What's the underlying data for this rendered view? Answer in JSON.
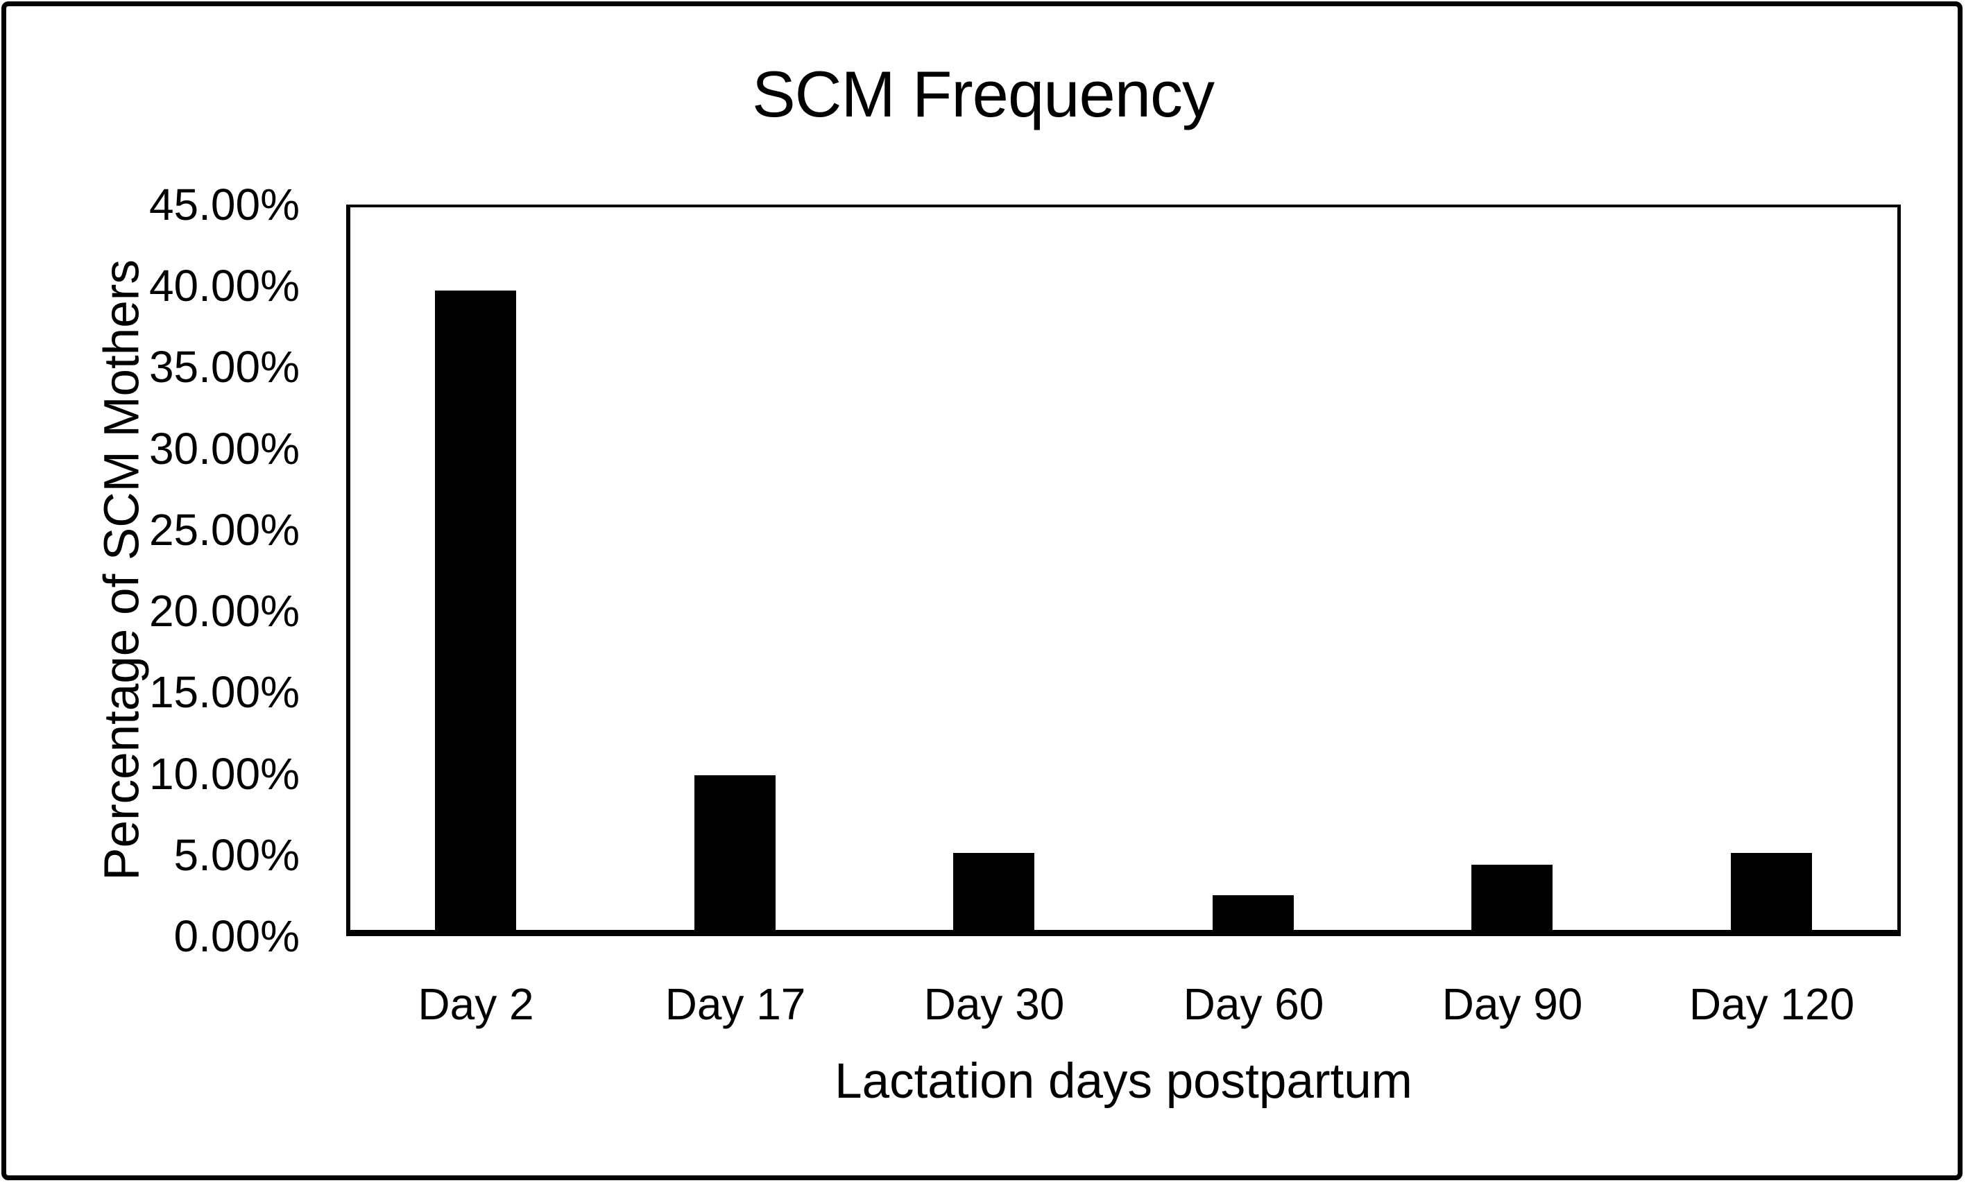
{
  "page": {
    "background_color": "#ffffff",
    "border_color": "#000000",
    "text_color": "#000000"
  },
  "chart_data": {
    "type": "bar",
    "title": "SCM Frequency",
    "xlabel": "Lactation days postpartum",
    "ylabel": "Percentage of SCM Mothers",
    "categories": [
      "Day 2",
      "Day 17",
      "Day 30",
      "Day 60",
      "Day 90",
      "Day 120"
    ],
    "values": [
      39.7,
      9.9,
      5.1,
      2.5,
      4.4,
      5.1
    ],
    "value_unit": "%",
    "ylim": [
      0,
      45
    ],
    "ytick_step": 5,
    "ytick_labels": [
      "0.00%",
      "5.00%",
      "10.00%",
      "15.00%",
      "20.00%",
      "25.00%",
      "30.00%",
      "35.00%",
      "40.00%",
      "45.00%"
    ],
    "bar_color": "#000000",
    "grid": false,
    "legend_position": "none"
  }
}
